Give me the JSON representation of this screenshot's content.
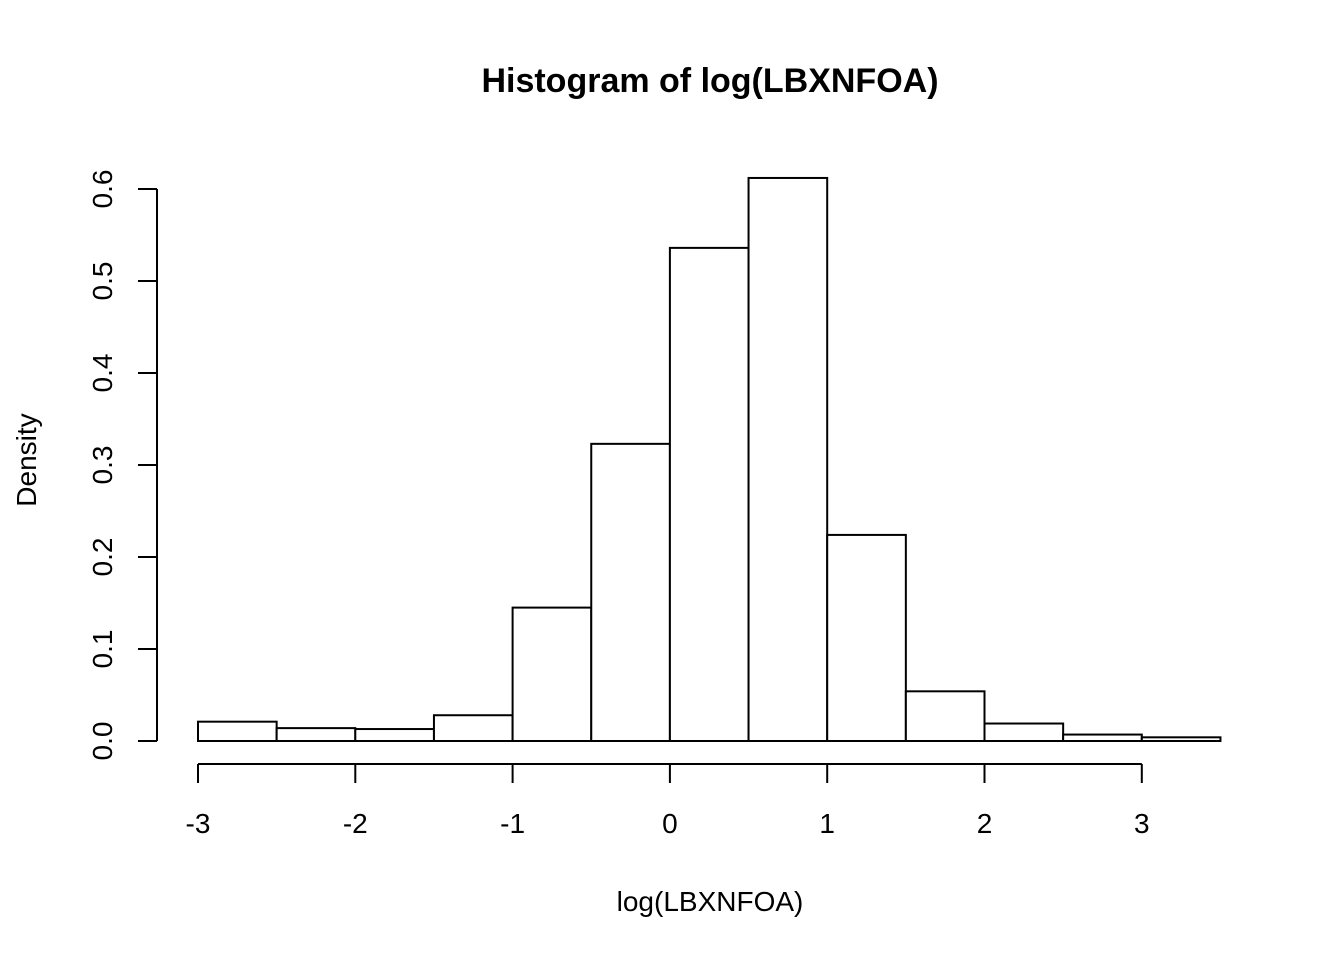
{
  "chart_data": {
    "type": "bar",
    "subtype": "histogram",
    "title": "Histogram of log(LBXNFOA)",
    "xlabel": "log(LBXNFOA)",
    "ylabel": "Density",
    "xlim": [
      -3,
      3.5
    ],
    "ylim": [
      0,
      0.6
    ],
    "xticks": [
      -3,
      -2,
      -1,
      0,
      1,
      2,
      3
    ],
    "xtick_labels": [
      "-3",
      "-2",
      "-1",
      "0",
      "1",
      "2",
      "3"
    ],
    "yticks": [
      0,
      0.1,
      0.2,
      0.3,
      0.4,
      0.5,
      0.6
    ],
    "ytick_labels": [
      "0.0",
      "0.1",
      "0.2",
      "0.3",
      "0.4",
      "0.5",
      "0.6"
    ],
    "grid": false,
    "bins": [
      {
        "x0": -3.0,
        "x1": -2.5,
        "density": 0.021
      },
      {
        "x0": -2.5,
        "x1": -2.0,
        "density": 0.014
      },
      {
        "x0": -2.0,
        "x1": -1.5,
        "density": 0.013
      },
      {
        "x0": -1.5,
        "x1": -1.0,
        "density": 0.028
      },
      {
        "x0": -1.0,
        "x1": -0.5,
        "density": 0.145
      },
      {
        "x0": -0.5,
        "x1": 0.0,
        "density": 0.323
      },
      {
        "x0": 0.0,
        "x1": 0.5,
        "density": 0.536
      },
      {
        "x0": 0.5,
        "x1": 1.0,
        "density": 0.612
      },
      {
        "x0": 1.0,
        "x1": 1.5,
        "density": 0.224
      },
      {
        "x0": 1.5,
        "x1": 2.0,
        "density": 0.054
      },
      {
        "x0": 2.0,
        "x1": 2.5,
        "density": 0.019
      },
      {
        "x0": 2.5,
        "x1": 3.0,
        "density": 0.007
      },
      {
        "x0": 3.0,
        "x1": 3.5,
        "density": 0.004
      }
    ],
    "colors": {
      "bar_fill": "#ffffff",
      "bar_stroke": "#000000"
    }
  }
}
